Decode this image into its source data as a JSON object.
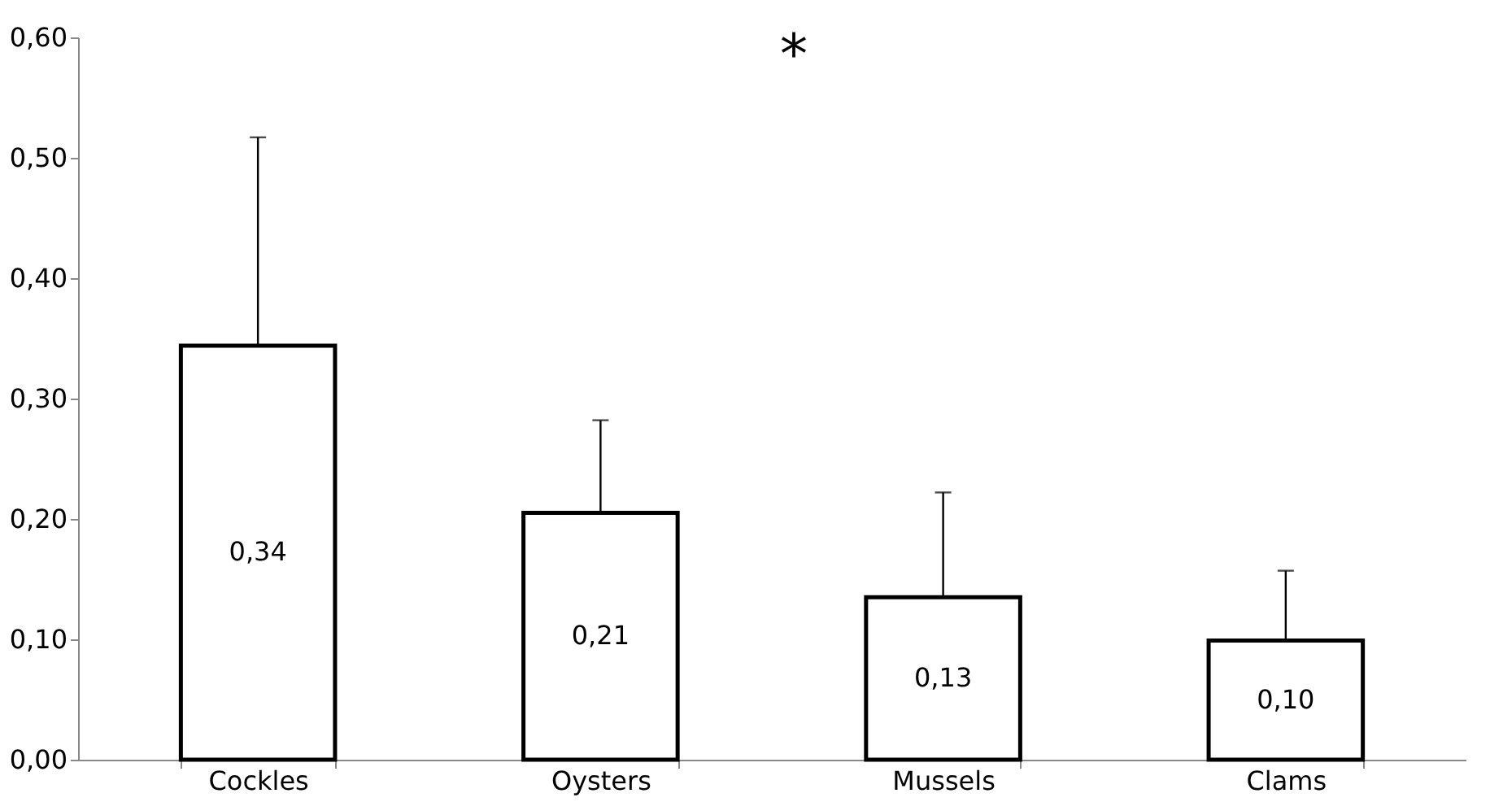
{
  "chart_data": {
    "type": "bar",
    "categories": [
      "Cockles",
      "Oysters",
      "Mussels",
      "Clams"
    ],
    "values": [
      0.344,
      0.205,
      0.135,
      0.099
    ],
    "value_labels": [
      "0,34",
      "0,21",
      "0,13",
      "0,10"
    ],
    "errors": [
      [
        0.344,
        0.517
      ],
      [
        0.205,
        0.282
      ],
      [
        0.135,
        0.222
      ],
      [
        0.099,
        0.157
      ]
    ],
    "color": "#ffffff",
    "ylim": [
      0,
      0.6
    ],
    "yticks": [
      {
        "value": 0,
        "label": "0,00"
      },
      {
        "value": 0.1,
        "label": "0,10"
      },
      {
        "value": 0.2,
        "label": "0,20"
      },
      {
        "value": 0.3,
        "label": "0,30"
      },
      {
        "value": 0.4,
        "label": "0,40"
      },
      {
        "value": 0.5,
        "label": "0,50"
      },
      {
        "value": 0.6,
        "label": "0,60"
      }
    ],
    "grid": false,
    "annotations": [
      "*"
    ]
  }
}
